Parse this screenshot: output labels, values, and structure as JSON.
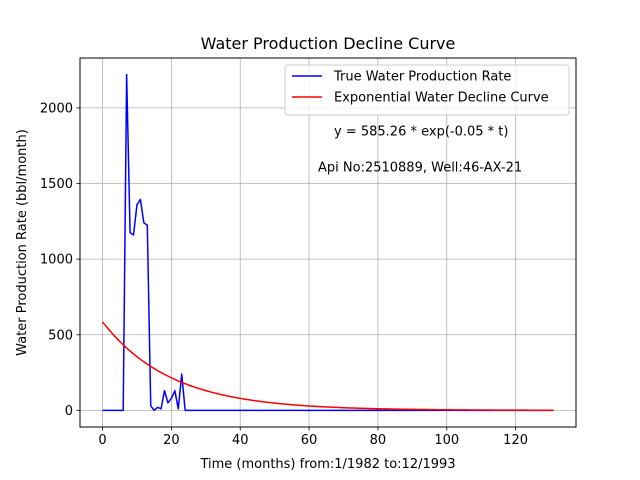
{
  "chart_data": {
    "type": "line",
    "title": "Water Production Decline Curve",
    "xlabel": "Time (months) from:1/1982 to:12/1993",
    "ylabel": "Water Production Rate (bbl/month)",
    "xlim": [
      -6.55,
      137.55
    ],
    "ylim": [
      -110,
      2330
    ],
    "xticks": [
      0,
      20,
      40,
      60,
      80,
      100,
      120
    ],
    "yticks": [
      0,
      500,
      1000,
      1500,
      2000
    ],
    "grid": true,
    "legend_position": "top-right",
    "series": [
      {
        "name": "True Water Production Rate",
        "color": "#0000ff",
        "x": [
          0,
          1,
          2,
          3,
          4,
          5,
          6,
          7,
          8,
          9,
          10,
          11,
          12,
          13,
          14,
          15,
          16,
          17,
          18,
          19,
          20,
          21,
          22,
          23,
          24,
          25,
          30,
          40,
          50,
          60,
          70,
          80,
          90,
          100,
          110,
          120,
          131
        ],
        "y": [
          0,
          0,
          0,
          0,
          0,
          0,
          0,
          2220,
          1175,
          1160,
          1360,
          1395,
          1240,
          1225,
          30,
          0,
          20,
          10,
          130,
          50,
          80,
          130,
          10,
          240,
          0,
          0,
          0,
          0,
          0,
          0,
          0,
          0,
          0,
          0,
          0,
          0,
          0
        ]
      },
      {
        "name": "Exponential Water Decline Curve",
        "color": "#ff0000",
        "model": {
          "a": 585.26,
          "b": -0.05,
          "t_min": 0,
          "t_max": 131
        }
      }
    ],
    "annotations": [
      "y = 585.26 * exp(-0.05 * t)",
      "Api No:2510889, Well:46-AX-21"
    ]
  }
}
